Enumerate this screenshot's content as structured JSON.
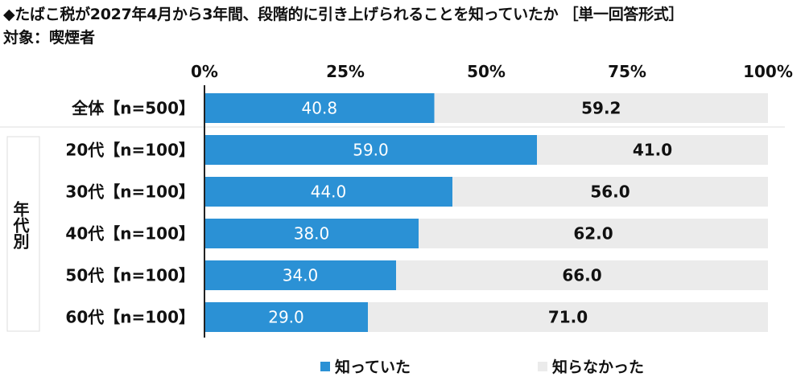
{
  "header": {
    "title": "◆たばこ税が2027年4月から3年間、段階的に引き上げられることを知っていたか ［単一回答形式］",
    "subtitle": "対象：喫煙者"
  },
  "group_label": "年代別",
  "colors": {
    "known": "#2b91d5",
    "unknown": "#ebebeb",
    "divider": "#dddddd"
  },
  "chart_data": {
    "type": "bar",
    "orientation": "horizontal",
    "stacked": true,
    "title": "◆たばこ税が2027年4月から3年間、段階的に引き上げられることを知っていたか ［単一回答形式］",
    "categories": [
      "全体【n=500】",
      "20代【n=100】",
      "30代【n=100】",
      "40代【n=100】",
      "50代【n=100】",
      "60代【n=100】"
    ],
    "series": [
      {
        "name": "知っていた",
        "values": [
          40.8,
          59.0,
          44.0,
          38.0,
          34.0,
          29.0
        ],
        "labels": [
          "40.8",
          "59.0",
          "44.0",
          "38.0",
          "34.0",
          "29.0"
        ]
      },
      {
        "name": "知らなかった",
        "values": [
          59.2,
          41.0,
          56.0,
          62.0,
          66.0,
          71.0
        ],
        "labels": [
          "59.2",
          "41.0",
          "56.0",
          "62.0",
          "66.0",
          "71.0"
        ]
      }
    ],
    "xlim": [
      0,
      100
    ],
    "xticks": [
      "0%",
      "25%",
      "50%",
      "75%",
      "100%"
    ],
    "legend_position": "bottom"
  }
}
